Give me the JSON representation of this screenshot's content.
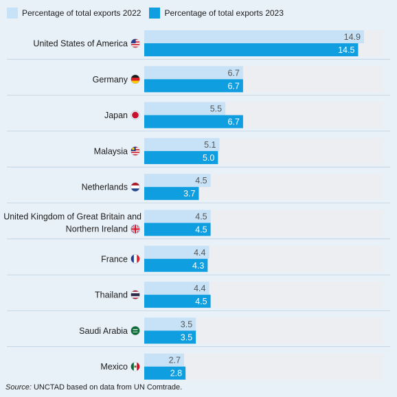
{
  "legend": {
    "s2022": "Percentage of total exports 2022",
    "s2023": "Percentage of total exports 2023"
  },
  "source": {
    "prefix": "Source:",
    "text": " UNCTAD based on data from UN Comtrade."
  },
  "colors": {
    "c2022": "#c7e2f7",
    "c2023": "#0f9fe0",
    "track": "#edeef2",
    "background": "#e9f1f8",
    "divider": "#bccfdf",
    "value_2022_text": "#555555",
    "value_2023_text": "#ffffff"
  },
  "chart_data": {
    "type": "bar",
    "orientation": "horizontal",
    "categories": [
      "United States of America",
      "Germany",
      "Japan",
      "Malaysia",
      "Netherlands",
      "United Kingdom of Great Britain and Northern Ireland",
      "France",
      "Thailand",
      "Saudi Arabia",
      "Mexico"
    ],
    "category_lines": [
      [
        "United States of America"
      ],
      [
        "Germany"
      ],
      [
        "Japan"
      ],
      [
        "Malaysia"
      ],
      [
        "Netherlands"
      ],
      [
        "United Kingdom of Great Britain and",
        "Northern Ireland"
      ],
      [
        "France"
      ],
      [
        "Thailand"
      ],
      [
        "Saudi Arabia"
      ],
      [
        "Mexico"
      ]
    ],
    "flag_icons": [
      "us-flag-icon",
      "germany-flag-icon",
      "japan-flag-icon",
      "malaysia-flag-icon",
      "netherlands-flag-icon",
      "uk-flag-icon",
      "france-flag-icon",
      "thailand-flag-icon",
      "saudi-arabia-flag-icon",
      "mexico-flag-icon"
    ],
    "series": [
      {
        "name": "Percentage of total exports 2022",
        "values": [
          14.9,
          6.7,
          5.5,
          5.1,
          4.5,
          4.5,
          4.4,
          4.4,
          3.5,
          2.7
        ]
      },
      {
        "name": "Percentage of total exports 2023",
        "values": [
          14.5,
          6.7,
          6.7,
          5.0,
          3.7,
          4.5,
          4.3,
          4.5,
          3.5,
          2.8
        ]
      }
    ],
    "xlim": [
      0,
      15.5
    ],
    "grid": false,
    "legend_position": "top-left"
  }
}
